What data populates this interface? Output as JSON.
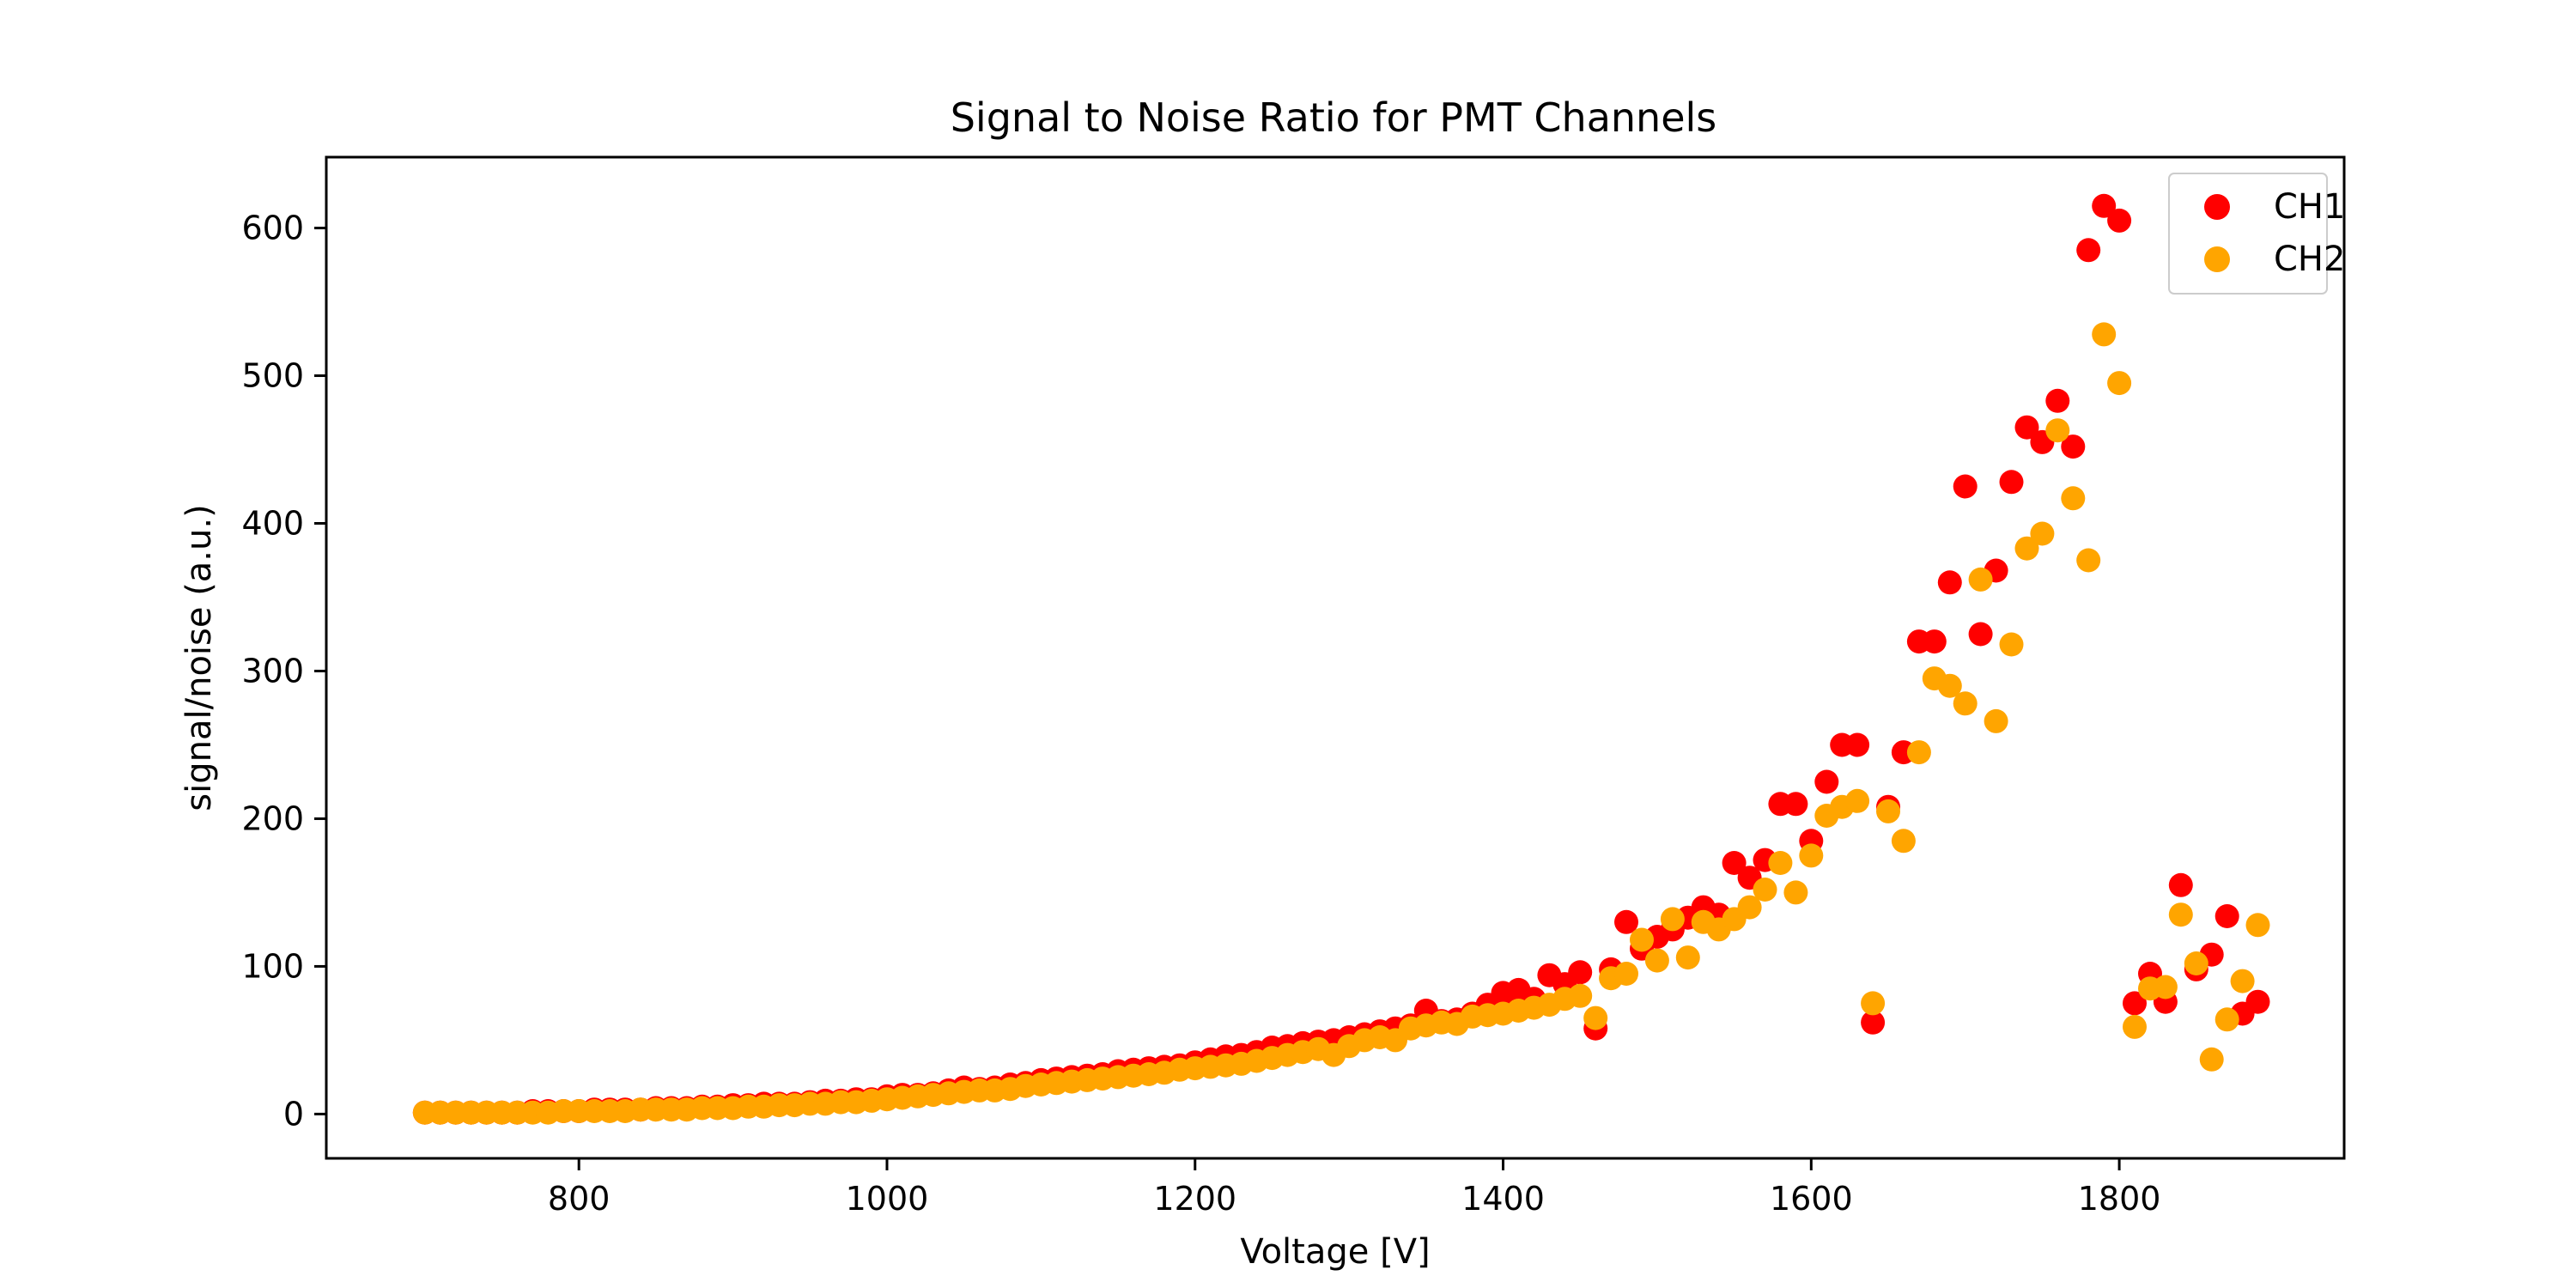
{
  "chart_data": {
    "type": "scatter",
    "title": "Signal to Noise Ratio for PMT Channels",
    "xlabel": "Voltage [V]",
    "ylabel": "signal/noise (a.u.)",
    "xlim": [
      636,
      1946
    ],
    "ylim": [
      -30,
      648
    ],
    "xticks": [
      800,
      1000,
      1200,
      1400,
      1600,
      1800
    ],
    "yticks": [
      0,
      100,
      200,
      300,
      400,
      500,
      600
    ],
    "grid": false,
    "legend": {
      "placement": "top-right"
    },
    "series": [
      {
        "name": "CH1",
        "color": "#ff0000",
        "x": [
          700,
          710,
          720,
          730,
          740,
          750,
          760,
          770,
          780,
          790,
          800,
          810,
          820,
          830,
          840,
          850,
          860,
          870,
          880,
          890,
          900,
          910,
          920,
          930,
          940,
          950,
          960,
          970,
          980,
          990,
          1000,
          1010,
          1020,
          1030,
          1040,
          1050,
          1060,
          1070,
          1080,
          1090,
          1100,
          1110,
          1120,
          1130,
          1140,
          1150,
          1160,
          1170,
          1180,
          1190,
          1200,
          1210,
          1220,
          1230,
          1240,
          1250,
          1260,
          1270,
          1280,
          1290,
          1300,
          1310,
          1320,
          1330,
          1340,
          1350,
          1360,
          1370,
          1380,
          1390,
          1400,
          1410,
          1420,
          1430,
          1440,
          1450,
          1460,
          1470,
          1480,
          1490,
          1500,
          1510,
          1520,
          1530,
          1540,
          1550,
          1560,
          1570,
          1580,
          1590,
          1600,
          1610,
          1620,
          1630,
          1640,
          1650,
          1660,
          1670,
          1680,
          1690,
          1700,
          1710,
          1720,
          1730,
          1740,
          1750,
          1760,
          1770,
          1780,
          1790,
          1800,
          1810,
          1820,
          1830,
          1840,
          1850,
          1860,
          1870,
          1880,
          1890
        ],
        "y": [
          1,
          1,
          1,
          1,
          1,
          1,
          1,
          2,
          2,
          2,
          2,
          3,
          3,
          3,
          3,
          4,
          4,
          4,
          5,
          5,
          6,
          6,
          7,
          7,
          7,
          8,
          9,
          9,
          10,
          10,
          12,
          13,
          13,
          14,
          16,
          18,
          17,
          18,
          20,
          21,
          23,
          24,
          25,
          26,
          27,
          29,
          30,
          31,
          32,
          33,
          35,
          37,
          39,
          40,
          42,
          45,
          46,
          48,
          49,
          50,
          52,
          54,
          56,
          58,
          60,
          70,
          63,
          64,
          68,
          74,
          82,
          84,
          78,
          94,
          88,
          96,
          58,
          98,
          130,
          112,
          120,
          125,
          133,
          140,
          135,
          170,
          160,
          172,
          210,
          210,
          185,
          225,
          250,
          250,
          62,
          208,
          245,
          320,
          320,
          360,
          425,
          325,
          368,
          428,
          465,
          455,
          483,
          452,
          585,
          615,
          605,
          75,
          95,
          76,
          155,
          98,
          108,
          134,
          68,
          76
        ]
      },
      {
        "name": "CH2",
        "color": "#ffa500",
        "x": [
          700,
          710,
          720,
          730,
          740,
          750,
          760,
          770,
          780,
          790,
          800,
          810,
          820,
          830,
          840,
          850,
          860,
          870,
          880,
          890,
          900,
          910,
          920,
          930,
          940,
          950,
          960,
          970,
          980,
          990,
          1000,
          1010,
          1020,
          1030,
          1040,
          1050,
          1060,
          1070,
          1080,
          1090,
          1100,
          1110,
          1120,
          1130,
          1140,
          1150,
          1160,
          1170,
          1180,
          1190,
          1200,
          1210,
          1220,
          1230,
          1240,
          1250,
          1260,
          1270,
          1280,
          1290,
          1300,
          1310,
          1320,
          1330,
          1340,
          1350,
          1360,
          1370,
          1380,
          1390,
          1400,
          1410,
          1420,
          1430,
          1440,
          1450,
          1460,
          1470,
          1480,
          1490,
          1500,
          1510,
          1520,
          1530,
          1540,
          1550,
          1560,
          1570,
          1580,
          1590,
          1600,
          1610,
          1620,
          1630,
          1640,
          1650,
          1660,
          1670,
          1680,
          1690,
          1700,
          1710,
          1720,
          1730,
          1740,
          1750,
          1760,
          1770,
          1780,
          1790,
          1800,
          1810,
          1820,
          1830,
          1840,
          1850,
          1860,
          1870,
          1880,
          1890
        ],
        "y": [
          1,
          1,
          1,
          1,
          1,
          1,
          1,
          1,
          1,
          2,
          2,
          2,
          2,
          2,
          3,
          3,
          3,
          3,
          4,
          4,
          4,
          5,
          5,
          6,
          6,
          7,
          7,
          8,
          8,
          9,
          10,
          11,
          12,
          13,
          14,
          15,
          16,
          16,
          17,
          19,
          20,
          21,
          22,
          23,
          24,
          25,
          26,
          27,
          28,
          30,
          31,
          32,
          33,
          34,
          36,
          38,
          40,
          42,
          44,
          40,
          46,
          50,
          52,
          50,
          58,
          60,
          62,
          61,
          66,
          67,
          68,
          70,
          72,
          74,
          78,
          80,
          65,
          92,
          95,
          118,
          104,
          132,
          106,
          130,
          125,
          132,
          140,
          152,
          170,
          150,
          175,
          202,
          208,
          212,
          75,
          205,
          185,
          245,
          295,
          290,
          278,
          362,
          266,
          318,
          383,
          393,
          463,
          417,
          375,
          528,
          495,
          59,
          85,
          86,
          135,
          102,
          37,
          64,
          90,
          128
        ]
      }
    ]
  }
}
